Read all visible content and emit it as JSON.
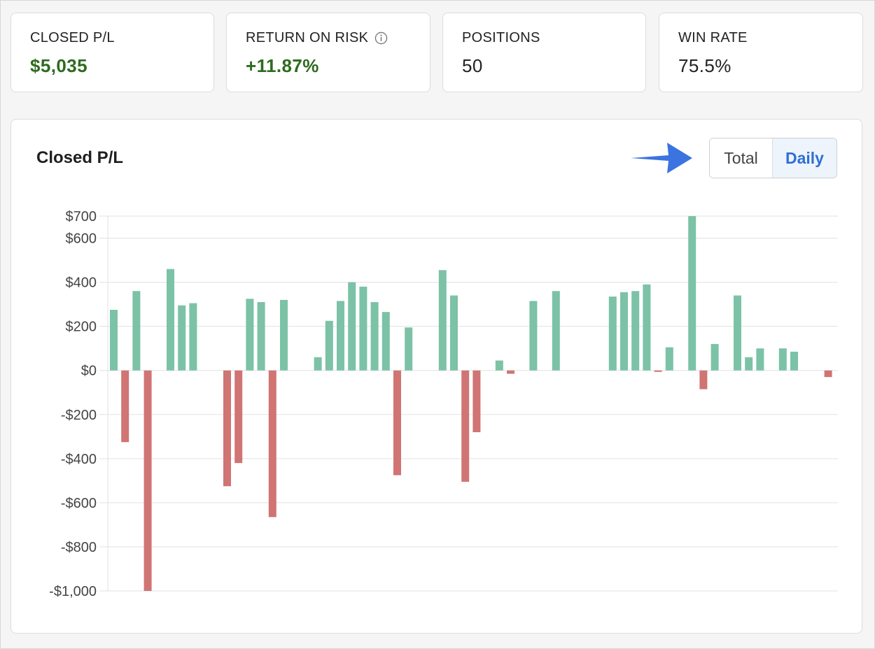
{
  "stats": [
    {
      "label": "CLOSED P/L",
      "value": "$5,035",
      "positive": true
    },
    {
      "label": "RETURN ON RISK",
      "value": "+11.87%",
      "positive": true,
      "info": true
    },
    {
      "label": "POSITIONS",
      "value": "50",
      "positive": false
    },
    {
      "label": "WIN RATE",
      "value": "75.5%",
      "positive": false
    }
  ],
  "chart": {
    "title": "Closed P/L",
    "toggle": {
      "total_label": "Total",
      "daily_label": "Daily",
      "active": "Daily"
    },
    "colors": {
      "positive": "#7cc2a6",
      "negative": "#d07474",
      "grid": "#e2e2e2",
      "arrow": "#3b74e0"
    }
  },
  "chart_data": {
    "type": "bar",
    "title": "Closed P/L",
    "xlabel": "",
    "ylabel": "",
    "ylim": [
      -1000,
      700
    ],
    "y_ticks": [
      {
        "value": 700,
        "label": "$700"
      },
      {
        "value": 600,
        "label": "$600"
      },
      {
        "value": 400,
        "label": "$400"
      },
      {
        "value": 200,
        "label": "$200"
      },
      {
        "value": 0,
        "label": "$0"
      },
      {
        "value": -200,
        "label": "-$200"
      },
      {
        "value": -400,
        "label": "-$400"
      },
      {
        "value": -600,
        "label": "-$600"
      },
      {
        "value": -800,
        "label": "-$800"
      },
      {
        "value": -1000,
        "label": "-$1,000"
      }
    ],
    "grid": true,
    "values": [
      275,
      -325,
      360,
      -1000,
      0,
      460,
      295,
      305,
      0,
      0,
      -525,
      -420,
      325,
      310,
      -665,
      320,
      0,
      0,
      60,
      225,
      315,
      400,
      380,
      310,
      265,
      -475,
      195,
      0,
      0,
      455,
      340,
      -505,
      -280,
      0,
      45,
      -15,
      0,
      315,
      0,
      360,
      0,
      0,
      0,
      0,
      335,
      355,
      360,
      390,
      -5,
      105,
      0,
      700,
      -85,
      120,
      0,
      340,
      60,
      100,
      0,
      100,
      85,
      0,
      0,
      -30
    ]
  }
}
